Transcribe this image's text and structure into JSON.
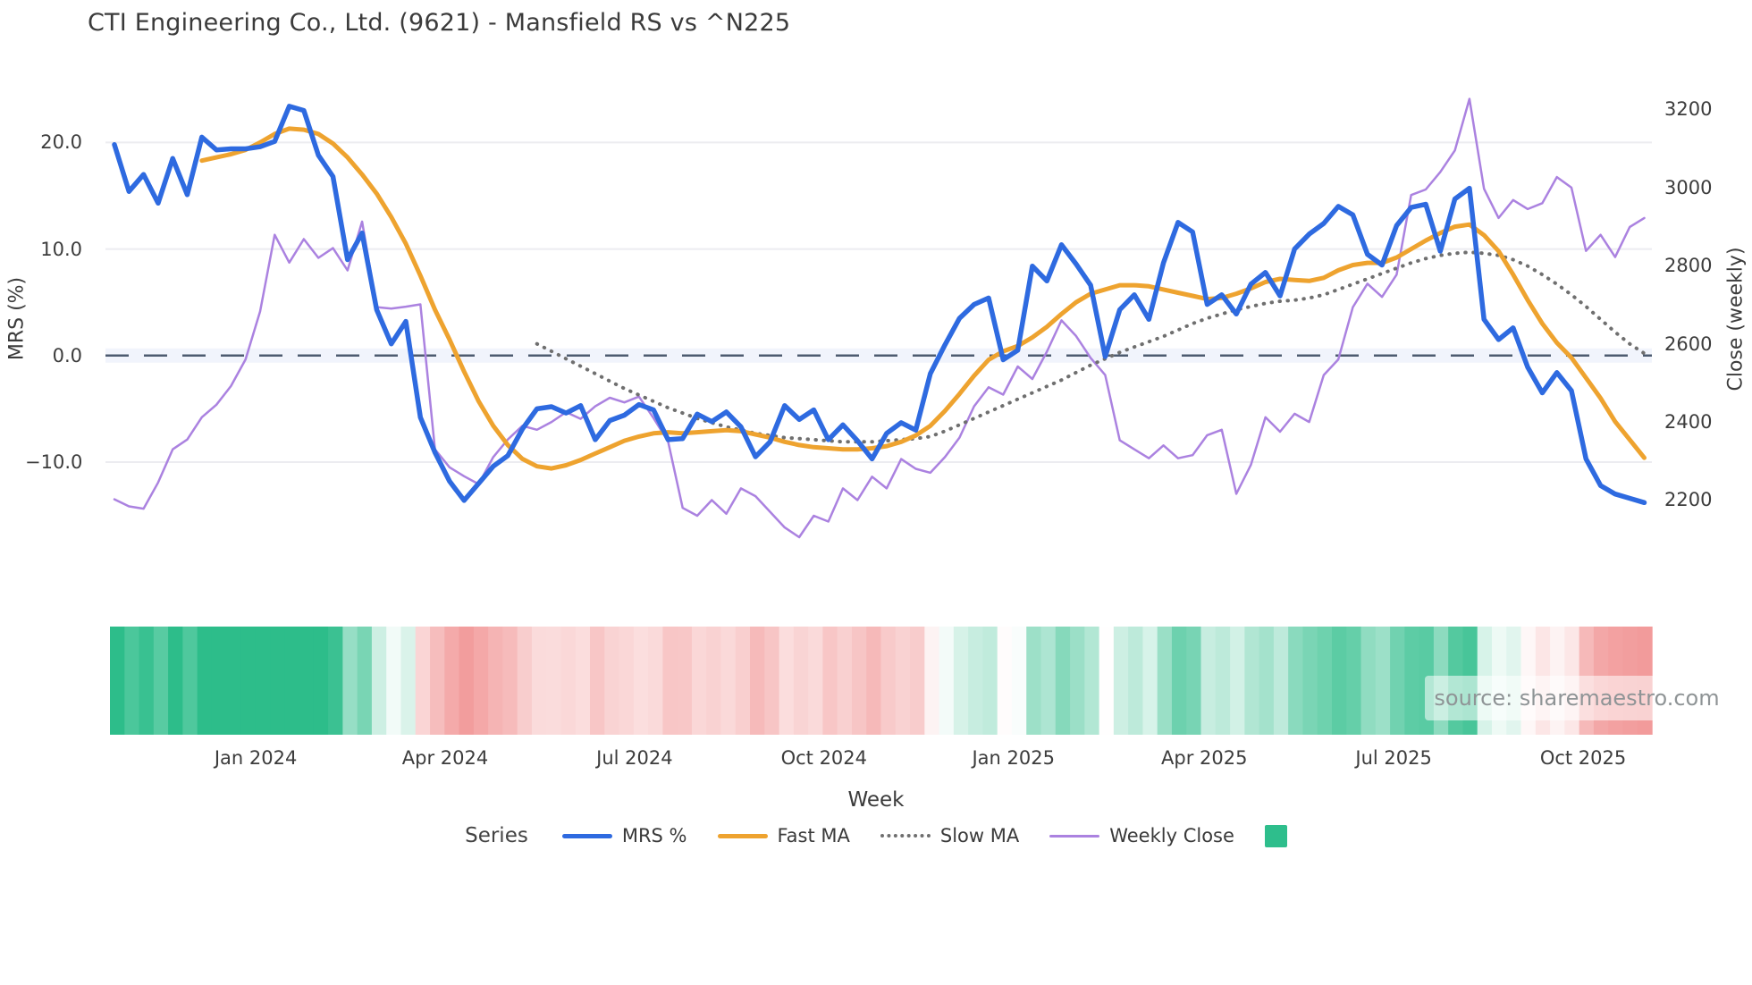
{
  "title": "CTI Engineering Co., Ltd. (9621) - Mansfield RS vs ^N225",
  "axes": {
    "left": {
      "label": "MRS (%)",
      "tick_values": [
        20,
        10,
        0,
        -10
      ],
      "tick_labels": [
        "20.0",
        "10.0",
        "0.0",
        "−10.0"
      ]
    },
    "right": {
      "label": "Close (weekly)",
      "tick_values": [
        3200,
        3000,
        2800,
        2600,
        2400,
        2200
      ],
      "tick_labels": [
        "3200",
        "3000",
        "2800",
        "2600",
        "2400",
        "2200"
      ]
    },
    "x": {
      "label": "Week",
      "tick_weeks": [
        9.7,
        22.7,
        35.7,
        48.7,
        61.7,
        74.8,
        87.8,
        100.8
      ],
      "tick_labels": [
        "Jan 2024",
        "Apr 2024",
        "Jul 2024",
        "Oct 2024",
        "Jan 2025",
        "Apr 2025",
        "Jul 2025",
        "Oct 2025"
      ]
    }
  },
  "legend": {
    "title": "Series",
    "items": [
      {
        "label": "MRS %",
        "type": "line",
        "color": "#2e6ae0"
      },
      {
        "label": "Fast MA",
        "type": "line",
        "color": "#eea32f"
      },
      {
        "label": "Slow MA",
        "type": "dotted",
        "color": "#6f6f6f"
      },
      {
        "label": "Weekly Close",
        "type": "line",
        "color": "#ab82e0"
      },
      {
        "label": "",
        "type": "square",
        "color": "#2ebe8c"
      }
    ]
  },
  "source_text": "source: sharemaestro.com",
  "colors": {
    "grid": "#ececf0",
    "zero_line": "#4d5b70",
    "zero_band": "rgba(120,150,230,0.10)",
    "heatmap_positive": "#2dbd8a",
    "heatmap_negative": "#ee7d7d",
    "text": "#3c3c3c"
  },
  "chart_data": {
    "type": "line",
    "x_unit": "week_index",
    "x_range_weeks": 106,
    "left_axis": {
      "label": "MRS (%)",
      "range_shown": [
        -22,
        27.5
      ]
    },
    "right_axis": {
      "label": "Close (weekly)",
      "range_shown": [
        1970,
        3320
      ]
    },
    "zero_reference_line": 0,
    "series": [
      {
        "name": "MRS %",
        "axis": "left",
        "color": "#2e6ae0",
        "style": "solid",
        "width": 5.5,
        "start_week": 0,
        "values": [
          19.8,
          15.4,
          17.0,
          14.3,
          18.5,
          15.1,
          20.5,
          19.3,
          19.4,
          19.4,
          19.6,
          20.1,
          23.4,
          23.0,
          18.8,
          16.8,
          9.0,
          11.5,
          4.3,
          1.1,
          3.2,
          -5.8,
          -9.1,
          -11.8,
          -13.6,
          -12.0,
          -10.4,
          -9.4,
          -6.9,
          -5.0,
          -4.8,
          -5.4,
          -4.7,
          -7.9,
          -6.1,
          -5.6,
          -4.6,
          -5.1,
          -7.9,
          -7.8,
          -5.5,
          -6.2,
          -5.3,
          -6.7,
          -9.5,
          -8.1,
          -4.7,
          -6.0,
          -5.1,
          -7.9,
          -6.5,
          -8.0,
          -9.7,
          -7.3,
          -6.3,
          -7.0,
          -1.7,
          1.0,
          3.5,
          4.8,
          5.4,
          -0.4,
          0.5,
          8.4,
          7.0,
          10.4,
          8.6,
          6.6,
          -0.1,
          4.3,
          5.7,
          3.4,
          8.7,
          12.5,
          11.6,
          4.8,
          5.7,
          3.9,
          6.7,
          7.8,
          5.6,
          10.0,
          11.4,
          12.4,
          14.0,
          13.2,
          9.5,
          8.5,
          12.2,
          13.9,
          14.2,
          9.8,
          14.7,
          15.7,
          3.4,
          1.5,
          2.6,
          -1.1,
          -3.5,
          -1.6,
          -3.3,
          -9.7,
          -12.2,
          -13.0,
          -13.4,
          -13.8
        ]
      },
      {
        "name": "Fast MA",
        "axis": "left",
        "color": "#eea32f",
        "style": "solid",
        "width": 5,
        "start_week": 6,
        "values": [
          18.3,
          18.6,
          18.9,
          19.3,
          20.0,
          20.8,
          21.3,
          21.2,
          20.8,
          19.9,
          18.6,
          17.0,
          15.2,
          13.0,
          10.5,
          7.5,
          4.3,
          1.5,
          -1.5,
          -4.3,
          -6.6,
          -8.4,
          -9.7,
          -10.4,
          -10.6,
          -10.3,
          -9.8,
          -9.2,
          -8.6,
          -8.0,
          -7.6,
          -7.3,
          -7.2,
          -7.3,
          -7.2,
          -7.1,
          -7.0,
          -7.1,
          -7.4,
          -7.7,
          -8.1,
          -8.4,
          -8.6,
          -8.7,
          -8.8,
          -8.8,
          -8.7,
          -8.5,
          -8.1,
          -7.5,
          -6.6,
          -5.2,
          -3.6,
          -1.9,
          -0.4,
          0.4,
          0.9,
          1.7,
          2.7,
          3.9,
          5.0,
          5.8,
          6.2,
          6.6,
          6.6,
          6.5,
          6.2,
          5.9,
          5.6,
          5.3,
          5.4,
          5.8,
          6.3,
          6.9,
          7.2,
          7.1,
          7.0,
          7.3,
          8.0,
          8.5,
          8.7,
          8.7,
          9.2,
          10.0,
          10.8,
          11.5,
          12.1,
          12.3,
          11.3,
          9.8,
          7.6,
          5.2,
          3.0,
          1.2,
          -0.2,
          -2.1,
          -4.0,
          -6.2,
          -7.9,
          -9.6
        ]
      },
      {
        "name": "Slow MA",
        "axis": "left",
        "color": "#6f6f6f",
        "style": "dotted",
        "width": 4,
        "start_week": 29,
        "values": [
          1.1,
          0.4,
          -0.3,
          -1.0,
          -1.7,
          -2.4,
          -3.1,
          -3.7,
          -4.3,
          -4.9,
          -5.4,
          -5.9,
          -6.3,
          -6.7,
          -7.0,
          -7.3,
          -7.5,
          -7.7,
          -7.8,
          -7.9,
          -8.0,
          -8.1,
          -8.1,
          -8.1,
          -8.0,
          -7.9,
          -7.8,
          -7.6,
          -7.1,
          -6.5,
          -5.9,
          -5.3,
          -4.7,
          -4.1,
          -3.5,
          -2.9,
          -2.3,
          -1.6,
          -0.9,
          -0.3,
          0.3,
          0.8,
          1.3,
          1.8,
          2.4,
          3.0,
          3.5,
          3.9,
          4.3,
          4.6,
          4.9,
          5.1,
          5.2,
          5.4,
          5.7,
          6.2,
          6.7,
          7.2,
          7.7,
          8.2,
          8.7,
          9.1,
          9.4,
          9.6,
          9.7,
          9.6,
          9.4,
          9.0,
          8.4,
          7.6,
          6.7,
          5.7,
          4.6,
          3.4,
          2.2,
          1.1,
          0.2
        ]
      },
      {
        "name": "Weekly Close",
        "axis": "right",
        "color": "#ab82e0",
        "style": "solid",
        "width": 2.5,
        "start_week": 0,
        "values": [
          2202,
          2184,
          2178,
          2245,
          2330,
          2355,
          2412,
          2444,
          2492,
          2560,
          2683,
          2879,
          2808,
          2868,
          2820,
          2845,
          2788,
          2913,
          2694,
          2690,
          2695,
          2701,
          2330,
          2284,
          2261,
          2241,
          2310,
          2355,
          2390,
          2380,
          2400,
          2425,
          2408,
          2440,
          2462,
          2450,
          2465,
          2410,
          2350,
          2180,
          2160,
          2200,
          2165,
          2230,
          2210,
          2170,
          2130,
          2105,
          2160,
          2145,
          2230,
          2200,
          2260,
          2230,
          2305,
          2280,
          2270,
          2310,
          2360,
          2440,
          2489,
          2470,
          2542,
          2510,
          2580,
          2660,
          2620,
          2564,
          2520,
          2353,
          2330,
          2307,
          2340,
          2307,
          2315,
          2366,
          2380,
          2216,
          2290,
          2412,
          2375,
          2421,
          2400,
          2520,
          2560,
          2694,
          2754,
          2720,
          2777,
          2981,
          2995,
          3040,
          3095,
          3227,
          2997,
          2922,
          2968,
          2945,
          2960,
          3027,
          3000,
          2838,
          2879,
          2822,
          2899,
          2922
        ]
      }
    ],
    "heatmap_strip": {
      "basis": "MRS % weekly values (green = positive, red = negative, intensity = magnitude)",
      "positive_color": "#2dbd8a",
      "negative_color": "#ee7d7d",
      "saturation_at_abs_value": 18
    }
  }
}
